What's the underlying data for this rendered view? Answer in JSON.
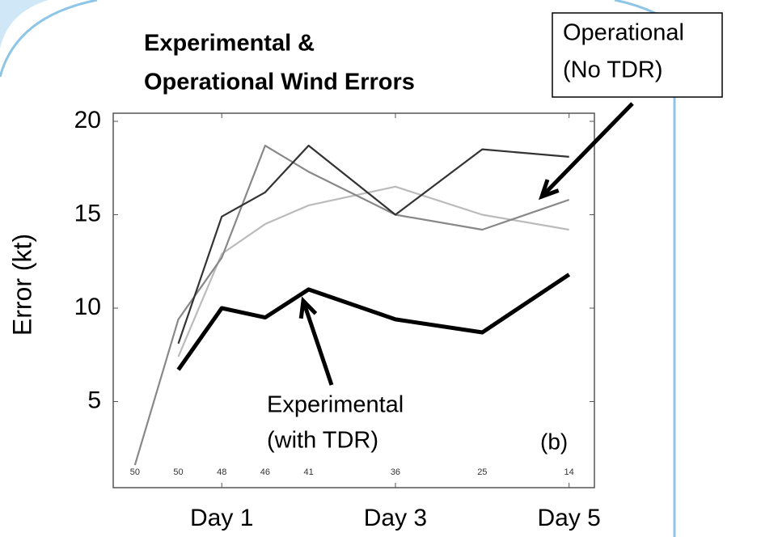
{
  "chart_data": {
    "type": "line",
    "title": [
      "Experimental &",
      "Operational Wind Errors"
    ],
    "y_label": "Error (kt)",
    "x": [
      0,
      12,
      24,
      36,
      48,
      72,
      96,
      120
    ],
    "xlim": [
      -6,
      127
    ],
    "xticks": [
      {
        "value": 24,
        "label": "Day 1"
      },
      {
        "value": 72,
        "label": "Day 3"
      },
      {
        "value": 120,
        "label": "Day 5"
      }
    ],
    "ylim": [
      0,
      20
    ],
    "yticks": [
      5,
      10,
      15,
      20
    ],
    "sample_counts": [
      "50",
      "50",
      "48",
      "46",
      "41",
      "36",
      "25",
      "14"
    ],
    "series": [
      {
        "color": "#bbbbbb",
        "values": [
          null,
          7.4,
          12.9,
          14.5,
          15.5,
          16.5,
          15.0,
          14.2
        ]
      },
      {
        "color": "#888888",
        "values": [
          1.6,
          9.4,
          12.7,
          18.7,
          17.3,
          15.0,
          14.2,
          15.8
        ]
      },
      {
        "color": "#333333",
        "values": [
          null,
          8.1,
          14.9,
          16.2,
          18.7,
          15.0,
          18.5,
          18.1
        ]
      },
      {
        "color": "#000000",
        "values": [
          null,
          6.7,
          10.0,
          9.5,
          11.0,
          9.4,
          8.7,
          11.8
        ]
      }
    ],
    "annotations": {
      "operational": [
        "Operational",
        "(No TDR)"
      ],
      "experimental": [
        "Experimental",
        "(with TDR)"
      ],
      "panel": "(b)"
    }
  }
}
